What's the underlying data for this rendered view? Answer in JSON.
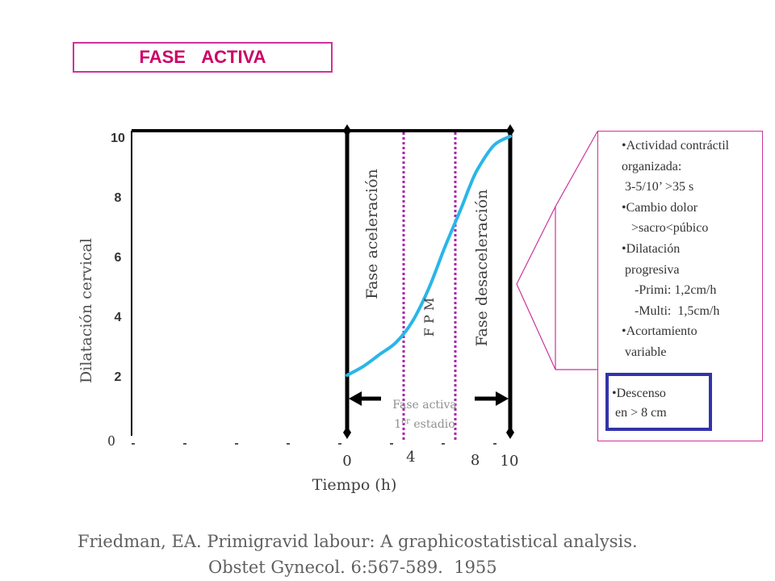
{
  "header": {
    "title": "FASE    ACTIVA"
  },
  "chart_data": {
    "type": "line",
    "xlabel": "Tiempo (h)",
    "ylabel": "Dilatación cervical",
    "ylim": [
      0,
      10
    ],
    "xlim": [
      0,
      10
    ],
    "y_ticks": [
      "10",
      "8",
      "6",
      "4",
      "2"
    ],
    "y_zero_label": "0",
    "x_ticks": [
      {
        "value": 0,
        "label": "0"
      },
      {
        "value": 4,
        "label": "4"
      },
      {
        "value": 8,
        "label": "8"
      },
      {
        "value": 10,
        "label": "10"
      }
    ],
    "series": [
      {
        "color": "#29b6e8",
        "x": [
          0,
          1,
          2,
          3,
          4,
          5,
          6,
          7,
          7.5,
          8,
          9,
          10
        ],
        "y": [
          2.0,
          2.3,
          2.7,
          3.1,
          3.8,
          4.9,
          6.3,
          7.6,
          8.3,
          8.9,
          9.7,
          10.0
        ]
      }
    ],
    "phase_markers": [
      {
        "x": 3.5
      },
      {
        "x": 6.7
      }
    ],
    "annotations": {
      "aceleracion": "Fase aceleración",
      "fpm": "F  P  M",
      "desaceleracion": "Fase desaceleración",
      "arrow_label_1": "Fase activa",
      "arrow_label_2": "1",
      "arrow_label_sup": "er",
      "arrow_label_3": " estadio"
    },
    "colors": {
      "marker_line": "#aa22aa",
      "frame": "#000000",
      "curve": "#29b6e8"
    }
  },
  "info": {
    "items": [
      "•Actividad contráctil",
      "organizada:",
      " 3-5/10’ >35 s",
      "•Cambio dolor",
      "   >sacro<púbico",
      "•Dilatación",
      " progresiva",
      "    -Primi: 1,2cm/h",
      "    -Multi:  1,5cm/h",
      "•Acortamiento",
      " variable"
    ],
    "descenso": [
      "•Descenso",
      " en > 8 cm"
    ],
    "accent": "#cc3399",
    "descenso_border": "#3333aa"
  },
  "citation": {
    "line1": "Friedman, EA. Primigravid labour: A graphicostatistical analysis.",
    "line2": "Obstet Gynecol. 6:567-589.  1955"
  }
}
